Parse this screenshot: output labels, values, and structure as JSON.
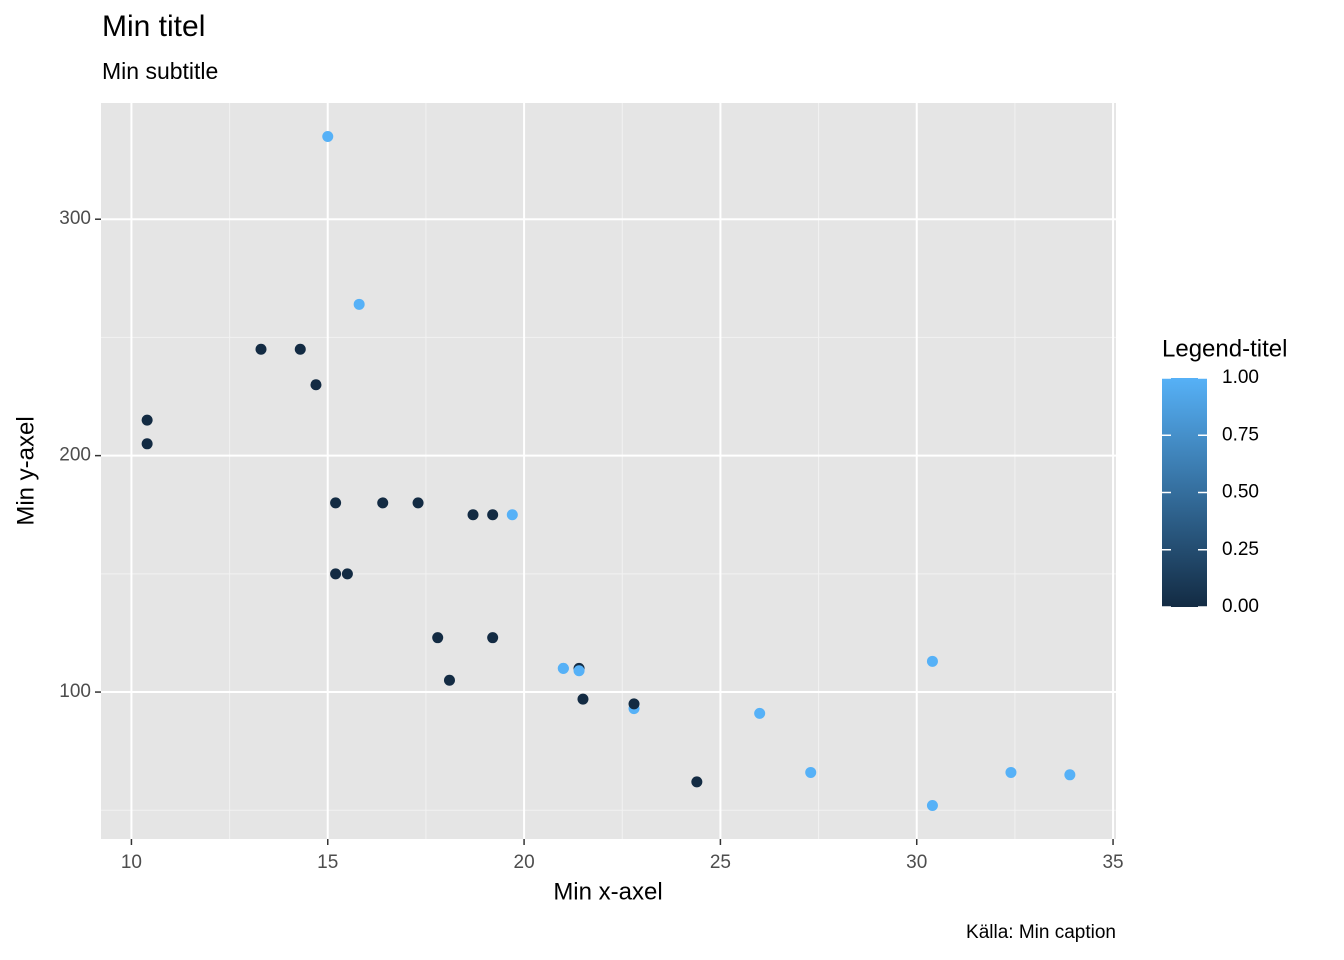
{
  "chart_data": {
    "type": "scatter",
    "title": "Min titel",
    "subtitle": "Min subtitle",
    "x_label": "Min x-axel",
    "y_label": "Min y-axel",
    "caption": "Källa: Min caption",
    "legend_title": "Legend-titel",
    "x": [
      21.0,
      21.0,
      22.8,
      21.4,
      18.7,
      18.1,
      14.3,
      24.4,
      22.8,
      19.2,
      17.8,
      16.4,
      17.3,
      15.2,
      10.4,
      10.4,
      14.7,
      32.4,
      30.4,
      33.9,
      21.5,
      15.5,
      15.2,
      13.3,
      19.2,
      27.3,
      26.0,
      30.4,
      15.8,
      19.7,
      15.0,
      21.4
    ],
    "values": [
      110,
      110,
      93,
      110,
      175,
      105,
      245,
      62,
      95,
      123,
      123,
      180,
      180,
      180,
      205,
      215,
      230,
      66,
      52,
      65,
      97,
      150,
      150,
      245,
      175,
      66,
      91,
      113,
      264,
      175,
      335,
      109
    ],
    "color_values": [
      1,
      1,
      1,
      0,
      0,
      0,
      0,
      0,
      0,
      0,
      0,
      0,
      0,
      0,
      0,
      0,
      0,
      1,
      1,
      1,
      0,
      0,
      0,
      0,
      0,
      1,
      1,
      1,
      1,
      1,
      1,
      1
    ],
    "color_low": "#132B43",
    "color_high": "#56B1F7",
    "colorlim": [
      0,
      1
    ],
    "colorticks": [
      {
        "value": 0,
        "label": "0.00"
      },
      {
        "value": 0.25,
        "label": "0.25"
      },
      {
        "value": 0.5,
        "label": "0.50"
      },
      {
        "value": 0.75,
        "label": "0.75"
      },
      {
        "value": 1,
        "label": "1.00"
      }
    ],
    "xlim": [
      9.225,
      35.075
    ],
    "xticks": [
      10,
      15,
      20,
      25,
      30,
      35
    ],
    "x_minor_ticks": [
      12.5,
      17.5,
      22.5,
      27.5,
      32.5
    ],
    "ylim": [
      37.85,
      349.15
    ],
    "yticks": [
      100,
      200,
      300
    ],
    "y_minor_ticks": [
      50,
      150,
      250
    ],
    "grid": true
  }
}
